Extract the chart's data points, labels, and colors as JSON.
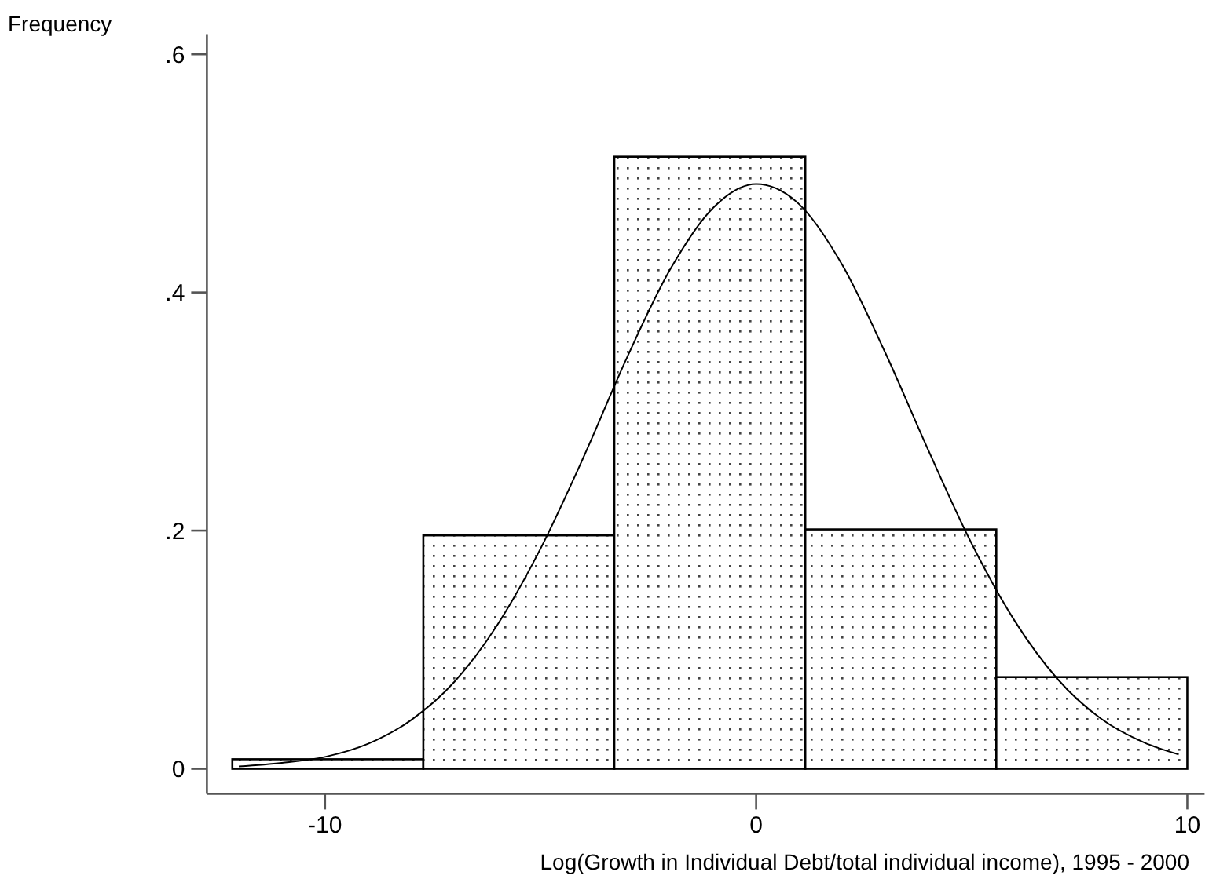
{
  "chart_data": {
    "type": "histogram",
    "xlabel": "Log(Growth in Individual Debt/total individual income), 1995 - 2000",
    "ylabel": "Frequency",
    "xlim": [
      -12.74,
      10.4
    ],
    "ylim": [
      -0.021,
      0.617
    ],
    "xticks": [
      -10,
      0,
      10
    ],
    "yticks": [
      0,
      {
        "value": 0.2,
        "label": ".2"
      },
      {
        "value": 0.4,
        "label": ".4"
      },
      {
        "value": 0.6,
        "label": ".6"
      }
    ],
    "grid": false,
    "series": [
      {
        "bins": [
          -12.15,
          -7.72,
          -3.29,
          1.14,
          5.57,
          10.0
        ],
        "values": [
          0.008,
          0.196,
          0.514,
          0.201,
          0.077
        ]
      },
      {
        "type": "line",
        "color": "#000000",
        "x": [
          -12,
          -11,
          -10,
          -9,
          -8,
          -7,
          -6,
          -5,
          -4,
          -3,
          -2,
          -1,
          0,
          1,
          2,
          3,
          4,
          5,
          6,
          7,
          8,
          9,
          9.8
        ],
        "values": [
          0.002,
          0.005,
          0.01,
          0.021,
          0.041,
          0.073,
          0.121,
          0.185,
          0.262,
          0.345,
          0.419,
          0.471,
          0.491,
          0.474,
          0.423,
          0.349,
          0.267,
          0.189,
          0.124,
          0.075,
          0.042,
          0.022,
          0.012
        ]
      }
    ]
  }
}
